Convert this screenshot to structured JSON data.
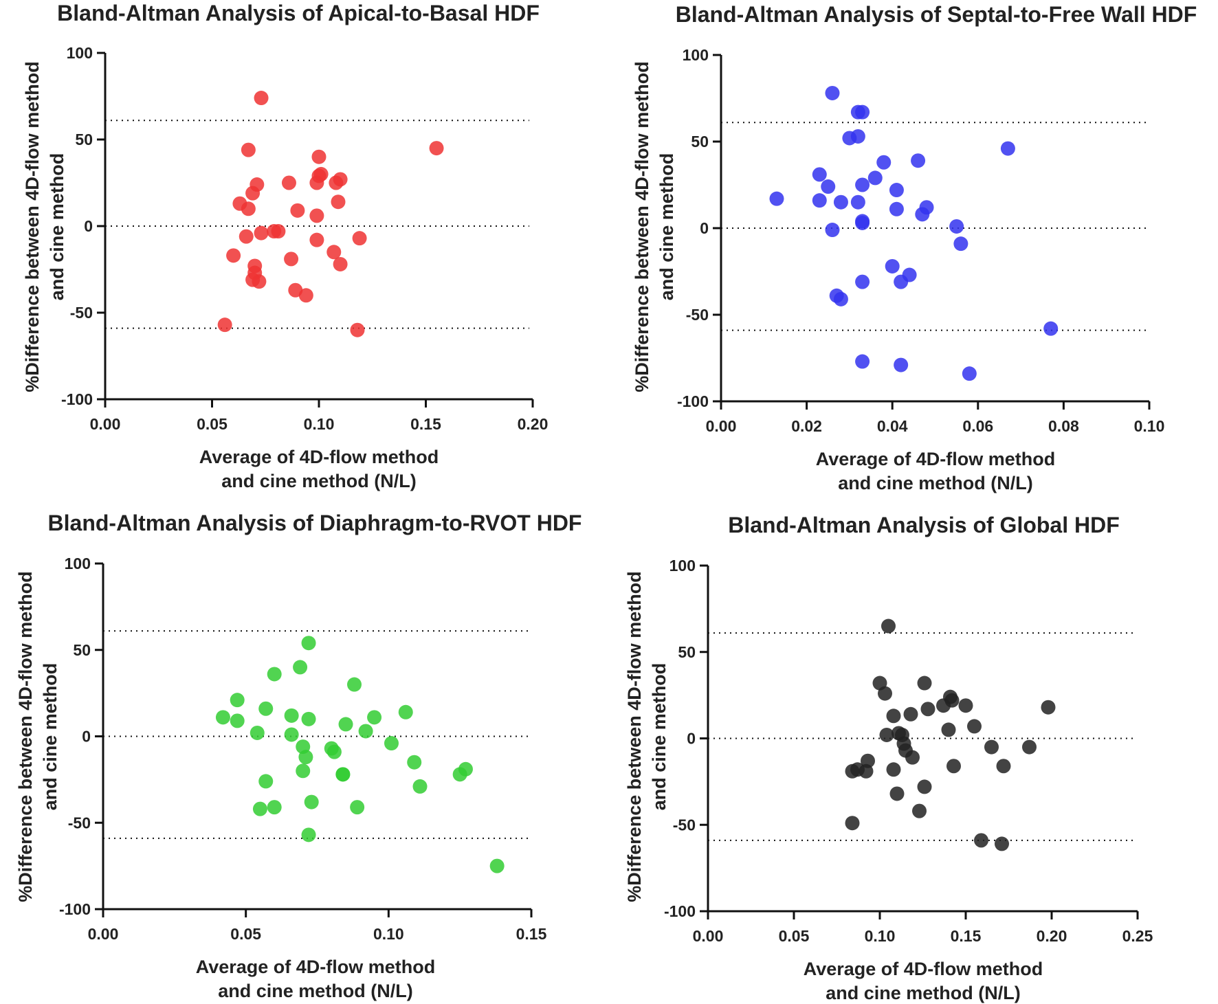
{
  "chart_data": [
    {
      "type": "scatter",
      "title": "Bland-Altman Analysis of Apical-to-Basal HDF",
      "xlabel": [
        "Average of 4D-flow method",
        "and cine method  (N/L)"
      ],
      "ylabel": [
        "%Difference between 4D-flow method",
        "and cine method"
      ],
      "xlim": [
        0,
        0.2
      ],
      "ylim": [
        -100,
        100
      ],
      "xticks": [
        "0.00",
        "0.05",
        "0.10",
        "0.15",
        "0.20"
      ],
      "yticks": [
        "-100",
        "-50",
        "0",
        "50",
        "100"
      ],
      "grid": false,
      "reference_lines": [
        61,
        0,
        -59
      ],
      "color": "#ee3333",
      "x": [
        0.073,
        0.155,
        0.067,
        0.1,
        0.101,
        0.1,
        0.099,
        0.108,
        0.11,
        0.071,
        0.086,
        0.069,
        0.063,
        0.067,
        0.109,
        0.09,
        0.099,
        0.081,
        0.079,
        0.073,
        0.066,
        0.099,
        0.119,
        0.107,
        0.06,
        0.087,
        0.11,
        0.07,
        0.07,
        0.072,
        0.069,
        0.089,
        0.094,
        0.056,
        0.118
      ],
      "y": [
        74,
        45,
        44,
        40,
        30,
        29,
        25,
        25,
        27,
        24,
        25,
        19,
        13,
        10,
        14,
        9,
        6,
        -3,
        -3,
        -4,
        -6,
        -8,
        -7,
        -15,
        -17,
        -19,
        -22,
        -23,
        -27,
        -32,
        -31,
        -37,
        -40,
        -57,
        -60
      ]
    },
    {
      "type": "scatter",
      "title": "Bland-Altman Analysis of Septal-to-Free Wall HDF",
      "xlabel": [
        "Average of 4D-flow method",
        "and cine method  (N/L)"
      ],
      "ylabel": [
        "%Difference between 4D-flow method",
        "and cine method"
      ],
      "xlim": [
        0,
        0.1
      ],
      "ylim": [
        -100,
        100
      ],
      "xticks": [
        "0.00",
        "0.02",
        "0.04",
        "0.06",
        "0.08",
        "0.10"
      ],
      "yticks": [
        "-100",
        "-50",
        "0",
        "50",
        "100"
      ],
      "grid": false,
      "reference_lines": [
        61,
        0,
        -59
      ],
      "color": "#3333ee",
      "x": [
        0.026,
        0.032,
        0.033,
        0.03,
        0.032,
        0.067,
        0.038,
        0.046,
        0.023,
        0.036,
        0.025,
        0.033,
        0.041,
        0.013,
        0.023,
        0.028,
        0.032,
        0.048,
        0.041,
        0.047,
        0.033,
        0.033,
        0.055,
        0.026,
        0.056,
        0.04,
        0.044,
        0.033,
        0.042,
        0.027,
        0.028,
        0.077,
        0.033,
        0.042,
        0.058
      ],
      "y": [
        78,
        67,
        67,
        52,
        53,
        46,
        38,
        39,
        31,
        29,
        24,
        25,
        22,
        17,
        16,
        15,
        15,
        12,
        11,
        8,
        4,
        3,
        1,
        -1,
        -9,
        -22,
        -27,
        -31,
        -31,
        -39,
        -41,
        -58,
        -77,
        -79,
        -84
      ]
    },
    {
      "type": "scatter",
      "title": "Bland-Altman Analysis of Diaphragm-to-RVOT HDF",
      "xlabel": [
        "Average of 4D-flow method",
        "and cine method  (N/L)"
      ],
      "ylabel": [
        "%Difference between 4D-flow method",
        "and cine method"
      ],
      "xlim": [
        0,
        0.15
      ],
      "ylim": [
        -100,
        100
      ],
      "xticks": [
        "0.00",
        "0.05",
        "0.10",
        "0.15"
      ],
      "yticks": [
        "-100",
        "-50",
        "0",
        "50",
        "100"
      ],
      "grid": false,
      "reference_lines": [
        61,
        0,
        -59
      ],
      "color": "#33cc33",
      "x": [
        0.072,
        0.069,
        0.06,
        0.088,
        0.047,
        0.057,
        0.106,
        0.066,
        0.042,
        0.047,
        0.072,
        0.095,
        0.085,
        0.092,
        0.054,
        0.066,
        0.101,
        0.07,
        0.08,
        0.081,
        0.071,
        0.109,
        0.127,
        0.07,
        0.125,
        0.084,
        0.084,
        0.057,
        0.111,
        0.073,
        0.089,
        0.055,
        0.06,
        0.072,
        0.138
      ],
      "y": [
        54,
        40,
        36,
        30,
        21,
        16,
        14,
        12,
        11,
        9,
        10,
        11,
        7,
        3,
        2,
        1,
        -4,
        -6,
        -7,
        -9,
        -12,
        -15,
        -19,
        -20,
        -22,
        -22,
        -22,
        -26,
        -29,
        -38,
        -41,
        -42,
        -41,
        -57,
        -75
      ]
    },
    {
      "type": "scatter",
      "title": "Bland-Altman Analysis of Global HDF",
      "xlabel": [
        "Average of 4D-flow method",
        "and cine method  (N/L)"
      ],
      "ylabel": [
        "%Difference between 4D-flow method",
        "and cine method"
      ],
      "xlim": [
        0,
        0.25
      ],
      "ylim": [
        -100,
        100
      ],
      "xticks": [
        "0.00",
        "0.05",
        "0.10",
        "0.15",
        "0.20",
        "0.25"
      ],
      "yticks": [
        "-100",
        "-50",
        "0",
        "50",
        "100"
      ],
      "grid": false,
      "reference_lines": [
        61,
        0,
        -59
      ],
      "color": "#222222",
      "x": [
        0.105,
        0.1,
        0.126,
        0.103,
        0.141,
        0.198,
        0.137,
        0.15,
        0.142,
        0.128,
        0.118,
        0.108,
        0.14,
        0.155,
        0.104,
        0.111,
        0.113,
        0.114,
        0.165,
        0.187,
        0.115,
        0.119,
        0.093,
        0.092,
        0.108,
        0.084,
        0.087,
        0.143,
        0.172,
        0.11,
        0.126,
        0.123,
        0.084,
        0.159,
        0.171
      ],
      "y": [
        65,
        32,
        32,
        26,
        24,
        18,
        19,
        19,
        22,
        17,
        14,
        13,
        5,
        7,
        2,
        3,
        2,
        -3,
        -5,
        -5,
        -7,
        -11,
        -13,
        -19,
        -18,
        -19,
        -18,
        -16,
        -16,
        -32,
        -28,
        -42,
        -49,
        -59,
        -61
      ]
    }
  ]
}
